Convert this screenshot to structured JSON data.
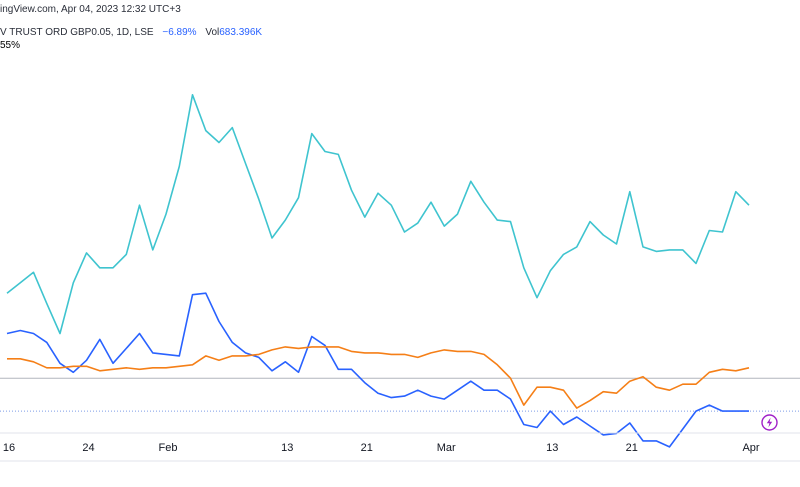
{
  "header": {
    "source_text": "ingView.com, Apr 04, 2023 12:32 UTC+3",
    "symbol_text": "V TRUST ORD GBP0.05, 1D, LSE",
    "change_pct": "−6.89%",
    "vol_label": "Vol",
    "vol_value": "683.396K",
    "second_line_text": "55%"
  },
  "colors": {
    "cyan": "#3fc4cf",
    "blue": "#2962ff",
    "orange": "#f57f17",
    "grid": "#b2b5be",
    "axis_text": "#131722"
  },
  "chart_data": {
    "type": "line",
    "xlabel": "",
    "ylabel": "",
    "x_ticks": [
      "16",
      "24",
      "Feb",
      "13",
      "21",
      "Mar",
      "13",
      "21",
      "Apr"
    ],
    "x_tick_index": [
      0,
      6,
      12,
      21,
      27,
      33,
      41,
      47,
      56
    ],
    "n_points": 57,
    "ylim": [
      -30,
      220
    ],
    "y_reference_lines": [
      0,
      -22
    ],
    "grid": false,
    "legend": "none",
    "series": [
      {
        "color": "cyan",
        "values": [
          57,
          64,
          71,
          50,
          30,
          64,
          84,
          74,
          74,
          83,
          116,
          86,
          110,
          142,
          190,
          166,
          158,
          168,
          144,
          120,
          94,
          106,
          121,
          164,
          152,
          150,
          126,
          108,
          124,
          116,
          98,
          104,
          118,
          102,
          110,
          132,
          118,
          106,
          105,
          74,
          54,
          72,
          83,
          88,
          105,
          96,
          90,
          125,
          88,
          85,
          86,
          86,
          77,
          99,
          98,
          125,
          116
        ]
      },
      {
        "color": "blue",
        "values": [
          30,
          32,
          30,
          24,
          10,
          4,
          12,
          26,
          10,
          20,
          30,
          17,
          16,
          15,
          56,
          57,
          38,
          24,
          17,
          14,
          5,
          11,
          4,
          28,
          22,
          6,
          6,
          -3,
          -10,
          -13,
          -12,
          -8,
          -12,
          -14,
          -8,
          -2,
          -8,
          -8,
          -14,
          -31,
          -33,
          -22,
          -31,
          -26,
          -32,
          -38,
          -37,
          -30,
          -42,
          -42,
          -46,
          -34,
          -22,
          -18,
          -22,
          -22,
          -22
        ]
      },
      {
        "color": "orange",
        "values": [
          13,
          13,
          11,
          7,
          7,
          8,
          8,
          5,
          6,
          7,
          6,
          7,
          7,
          8,
          9,
          15,
          12,
          15,
          15,
          16,
          19,
          21,
          20,
          21,
          21,
          21,
          18,
          17,
          17,
          16,
          16,
          14,
          17,
          19,
          18,
          18,
          16,
          9,
          0,
          -18,
          -6,
          -6,
          -8,
          -20,
          -15,
          -9,
          -10,
          -2,
          1,
          -6,
          -8,
          -4,
          -4,
          4,
          6,
          5,
          7
        ]
      }
    ]
  }
}
